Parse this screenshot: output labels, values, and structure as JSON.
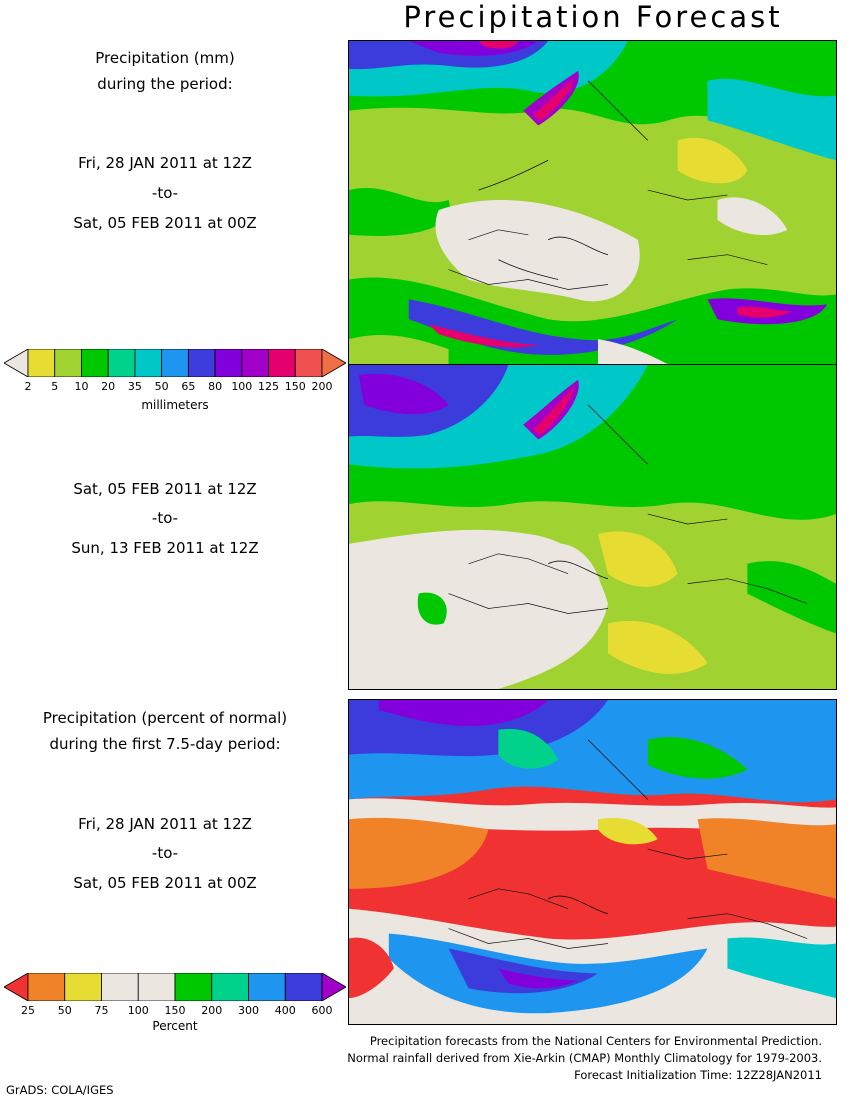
{
  "title": "Precipitation Forecast",
  "panel1": {
    "header_line1": "Precipitation (mm)",
    "header_line2": "during the period:",
    "start": "Fri, 28 JAN 2011 at 12Z",
    "sep": "-to-",
    "end": "Sat, 05 FEB 2011 at 00Z"
  },
  "panel2": {
    "start": "Sat, 05 FEB 2011 at 12Z",
    "sep": "-to-",
    "end": "Sun, 13 FEB 2011 at 12Z"
  },
  "panel3": {
    "header_line1": "Precipitation (percent of normal)",
    "header_line2": "during the first 7.5-day period:",
    "start": "Fri, 28 JAN 2011 at 12Z",
    "sep": "-to-",
    "end": "Sat, 05 FEB 2011 at 00Z"
  },
  "mm_colorbar": {
    "ticks": [
      "2",
      "5",
      "10",
      "20",
      "35",
      "50",
      "65",
      "80",
      "100",
      "125",
      "150",
      "200"
    ],
    "colors": [
      "#ece6e0",
      "#e6dc32",
      "#a0d232",
      "#00c800",
      "#00d28c",
      "#00c8c8",
      "#1e96f0",
      "#3c3cdc",
      "#8200dc",
      "#a000c8",
      "#e6006e",
      "#f05050",
      "#f06e46"
    ],
    "unit": "millimeters"
  },
  "pct_colorbar": {
    "ticks": [
      "25",
      "50",
      "75",
      "100",
      "150",
      "200",
      "300",
      "400",
      "600"
    ],
    "colors": [
      "#f03232",
      "#f08228",
      "#e6dc32",
      "#ece6e0",
      "#ece6e0",
      "#00c800",
      "#00d28c",
      "#1e96f0",
      "#3c3cdc",
      "#a000c8"
    ],
    "unit": "Percent"
  },
  "footer": {
    "line1": "Precipitation forecasts from the National Centers for Environmental Prediction.",
    "line2": "Normal rainfall derived from Xie-Arkin (CMAP) Monthly Climatology for 1979-2003.",
    "line3": "Forecast Initialization Time: 12Z28JAN2011"
  },
  "credit": "GrADS: COLA/IGES"
}
